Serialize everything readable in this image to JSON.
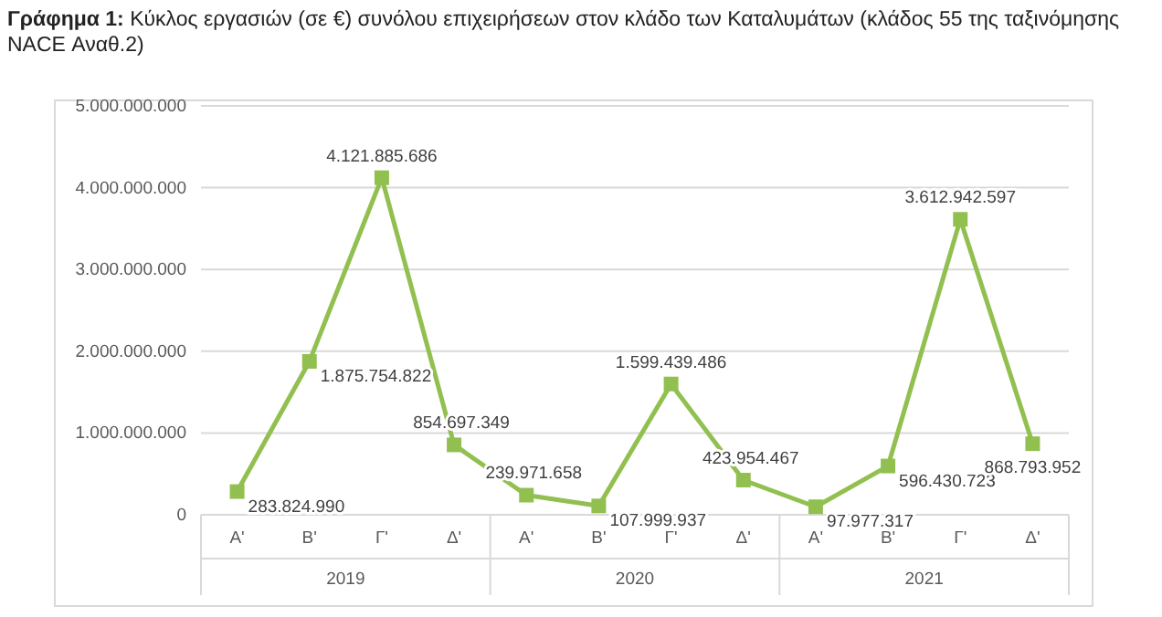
{
  "chart_data": {
    "type": "line",
    "title": "Γράφημα 1: Κύκλος εργασιών (σε €) συνόλου επιχειρήσεων στον κλάδο των Καταλυμάτων (κλάδος 55 της ταξινόμησης NACE Αναθ.2)",
    "categories": [
      "Α'",
      "Β'",
      "Γ'",
      "Δ'",
      "Α'",
      "Β'",
      "Γ'",
      "Δ'",
      "Α'",
      "Β'",
      "Γ'",
      "Δ'"
    ],
    "annotations": [
      "2019",
      "2020",
      "2021"
    ],
    "series": [
      {
        "color": "#92c050",
        "values": [
          283824990,
          1875754822,
          4121885686,
          854697349,
          239971658,
          107999937,
          1599439486,
          423954467,
          97977317,
          596430723,
          3612942597,
          868793952
        ],
        "value_labels": [
          "283.824.990",
          "1.875.754.822",
          "4.121.885.686",
          "854.697.349",
          "239.971.658",
          "107.999.937",
          "1.599.439.486",
          "423.954.467",
          "97.977.317",
          "596.430.723",
          "3.612.942.597",
          "868.793.952"
        ]
      }
    ],
    "ylim": [
      0,
      5000000000
    ],
    "yticks": [
      {
        "value": 0,
        "label": "0"
      },
      {
        "value": 1000000000,
        "label": "1.000.000.000"
      },
      {
        "value": 2000000000,
        "label": "2.000.000.000"
      },
      {
        "value": 3000000000,
        "label": "3.000.000.000"
      },
      {
        "value": 4000000000,
        "label": "4.000.000.000"
      },
      {
        "value": 5000000000,
        "label": "5.000.000.000"
      }
    ],
    "grid": "y",
    "marker": "square",
    "line_style": "solid"
  }
}
